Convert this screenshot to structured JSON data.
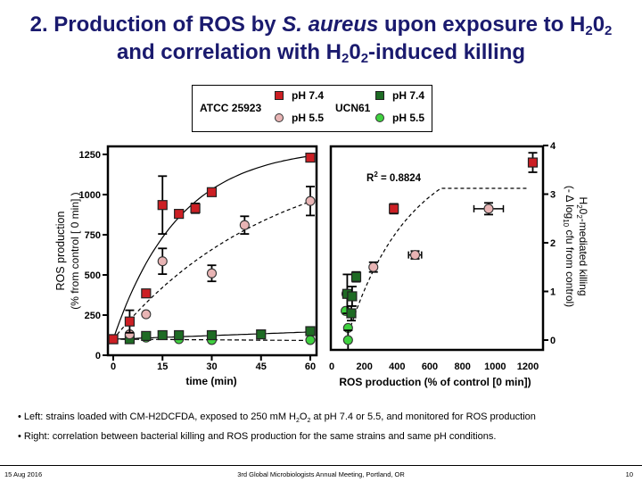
{
  "title": {
    "line1_prefix": "2. Production of ROS by ",
    "line1_italic": "S. aureus",
    "line1_mid": " upon exposure to H",
    "sub_2": "2",
    "line1_o": "0",
    "line2_prefix": "and correlation with H",
    "line2_o": "0",
    "line2_suffix": "-induced killing"
  },
  "legend": {
    "strains": [
      {
        "name": "ATCC 25923",
        "entries": [
          {
            "label": "pH 7.4",
            "marker": "square",
            "color": "#cc1f24"
          },
          {
            "label": "pH 5.5",
            "marker": "circle",
            "color": "#e8b4b4"
          }
        ]
      },
      {
        "name": "UCN61",
        "entries": [
          {
            "label": "pH 7.4",
            "marker": "square",
            "color": "#1e6b24"
          },
          {
            "label": "pH 5.5",
            "marker": "circle",
            "color": "#3fd13f"
          }
        ]
      }
    ]
  },
  "chart_data": [
    {
      "type": "scatter",
      "title": "",
      "xlabel": "time (min)",
      "ylabel": "ROS production",
      "ylabel2": "(% from control [ 0 min] )",
      "xlim": [
        0,
        60
      ],
      "ylim": [
        0,
        1250
      ],
      "xticks": [
        "0",
        "15",
        "30",
        "45",
        "60"
      ],
      "yticks": [
        "0",
        "250",
        "500",
        "750",
        "1000",
        "1250"
      ],
      "series": [
        {
          "name": "ATCC 25923 pH 7.4",
          "marker": "square",
          "color": "#cc1f24",
          "fit": "solid",
          "x": [
            0,
            5,
            10,
            15,
            20,
            25,
            30,
            60
          ],
          "y": [
            100,
            210,
            385,
            935,
            880,
            915,
            1015,
            1230
          ],
          "err": [
            0,
            70,
            0,
            180,
            0,
            30,
            0,
            25
          ]
        },
        {
          "name": "ATCC 25923 pH 5.5",
          "marker": "circle",
          "color": "#e8b4b4",
          "fit": "dashed",
          "x": [
            0,
            5,
            10,
            15,
            30,
            40,
            60
          ],
          "y": [
            100,
            130,
            255,
            585,
            510,
            810,
            960
          ],
          "err": [
            0,
            0,
            0,
            80,
            50,
            55,
            90
          ]
        },
        {
          "name": "UCN61 pH 7.4",
          "marker": "square",
          "color": "#1e6b24",
          "fit": "solid",
          "x": [
            0,
            5,
            10,
            15,
            20,
            30,
            45,
            60
          ],
          "y": [
            100,
            100,
            120,
            125,
            125,
            125,
            130,
            150
          ],
          "err": [
            0,
            0,
            0,
            0,
            0,
            0,
            0,
            0
          ]
        },
        {
          "name": "UCN61 pH 5.5",
          "marker": "circle",
          "color": "#3fd13f",
          "fit": "dashed",
          "x": [
            0,
            5,
            10,
            20,
            30,
            60
          ],
          "y": [
            100,
            105,
            110,
            100,
            95,
            95
          ],
          "err": [
            0,
            0,
            0,
            0,
            0,
            0
          ]
        }
      ]
    },
    {
      "type": "scatter",
      "title": "",
      "xlabel": "ROS production (% of control [0 min])",
      "ylabel": "H202-mediated killing",
      "ylabel2": "(- Δ log10 cfu from control)",
      "annotation": "R2 = 0.8824",
      "xlim": [
        0,
        1300
      ],
      "ylim": [
        -0.3,
        4
      ],
      "xticks": [
        "0",
        "200",
        "400",
        "600",
        "800",
        "1000",
        "1200"
      ],
      "yticks": [
        "0",
        "1",
        "2",
        "3",
        "4"
      ],
      "series": [
        {
          "name": "ATCC 25923 pH 7.4",
          "marker": "square",
          "color": "#cc1f24",
          "x": [
            380,
            1230
          ],
          "y": [
            2.7,
            3.65
          ],
          "yerr": [
            0.1,
            0.2
          ],
          "xerr": [
            0,
            20
          ]
        },
        {
          "name": "ATCC 25923 pH 5.5",
          "marker": "circle",
          "color": "#e8b4b4",
          "x": [
            255,
            510,
            960
          ],
          "y": [
            1.5,
            1.75,
            2.7
          ],
          "yerr": [
            0.1,
            0.08,
            0.12
          ],
          "xerr": [
            0,
            40,
            90
          ]
        },
        {
          "name": "UCN61 pH 7.4",
          "marker": "square",
          "color": "#1e6b24",
          "x": [
            95,
            125,
            120,
            150
          ],
          "y": [
            0.95,
            0.9,
            0.55,
            1.3
          ],
          "yerr": [
            0.4,
            0.2,
            0.15,
            0.1
          ],
          "xerr": [
            0,
            0,
            0,
            0
          ]
        },
        {
          "name": "UCN61 pH 5.5",
          "marker": "circle",
          "color": "#3fd13f",
          "x": [
            90,
            85,
            100,
            100
          ],
          "y": [
            0.95,
            0.6,
            0.25,
            0.0
          ],
          "yerr": [
            0,
            0,
            0,
            0.2
          ],
          "xerr": [
            0,
            0,
            0,
            0
          ]
        }
      ]
    }
  ],
  "bullets": {
    "left_a": "Left: strains loaded with CM-H2DCFDA, exposed to 250 mM H",
    "left_sub2": "2",
    "left_o": "O",
    "left_b": " at pH 7.4 or 5.5, and monitored for ROS production",
    "right": "Right: correlation between bacterial killing and ROS production for the same strains and same pH conditions."
  },
  "footer": {
    "date": "15 Aug 2016",
    "event": "3rd Global Microbiologists Annual Meeting, Portland, OR",
    "page": "10"
  }
}
